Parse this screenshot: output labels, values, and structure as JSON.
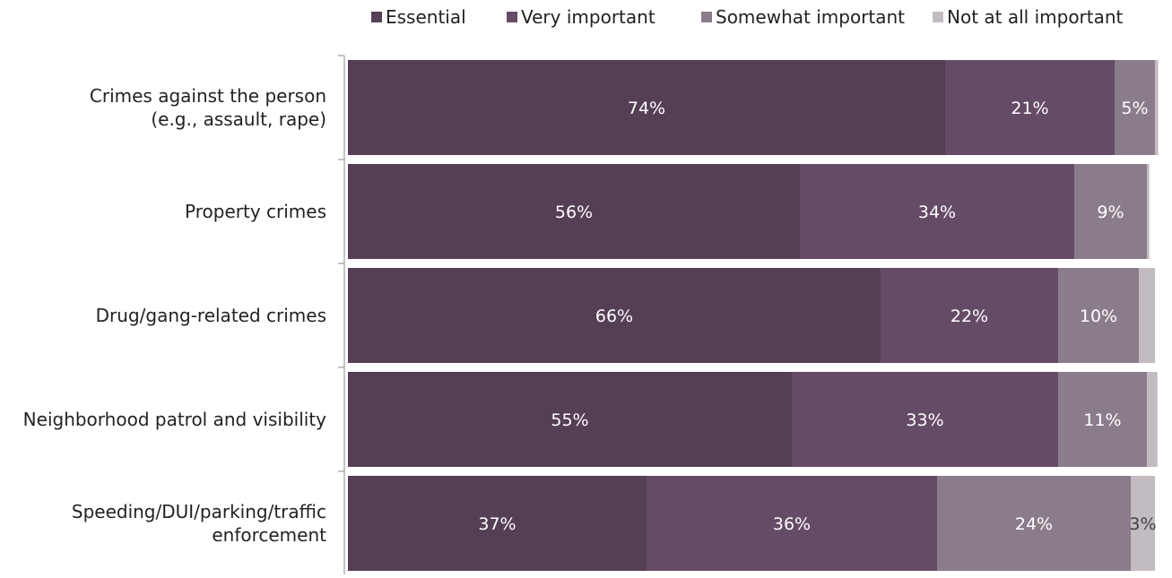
{
  "chart_data": {
    "type": "bar",
    "orientation": "horizontal",
    "stacked": true,
    "percent_stacked": true,
    "title": "",
    "xlabel": "",
    "ylabel": "",
    "grid": false,
    "legend_position": "top-right",
    "xlim": [
      0,
      100
    ],
    "categories": [
      [
        "Crimes against the person",
        "(e.g., assault, rape)"
      ],
      [
        "Property crimes"
      ],
      [
        "Drug/gang-related crimes"
      ],
      [
        "Neighborhood patrol and visibility"
      ],
      [
        "Speeding/DUI/parking/traffic",
        "enforcement"
      ]
    ],
    "series": [
      {
        "name": "Essential",
        "color": "#553f55",
        "label_color": "#ffffff",
        "values": [
          74,
          56,
          66,
          55,
          37
        ],
        "labels": [
          "74%",
          "56%",
          "66%",
          "55%",
          "37%"
        ]
      },
      {
        "name": "Very important",
        "color": "#664b66",
        "label_color": "#ffffff",
        "values": [
          21,
          34,
          22,
          33,
          36
        ],
        "labels": [
          "21%",
          "34%",
          "22%",
          "33%",
          "36%"
        ]
      },
      {
        "name": "Somewhat important",
        "color": "#8b7c8b",
        "label_color": "#ffffff",
        "values": [
          5,
          9,
          10,
          11,
          24
        ],
        "labels": [
          "5%",
          "9%",
          "10%",
          "11%",
          "24%"
        ]
      },
      {
        "name": "Not at all important",
        "color": "#c2bcc2",
        "label_color": "#404040",
        "values": [
          0.4,
          0.3,
          2,
          1.3,
          3
        ],
        "labels": [
          "",
          "",
          "",
          "",
          "3%"
        ]
      }
    ]
  }
}
